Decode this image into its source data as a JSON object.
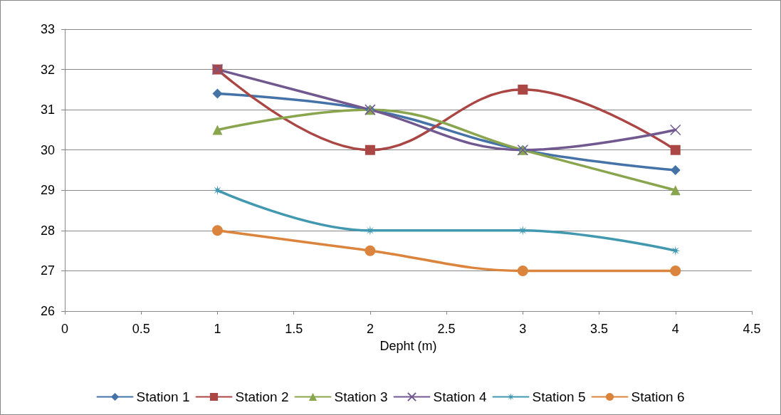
{
  "chart_data": {
    "type": "line",
    "xlabel": "Depht (m)",
    "x": [
      1,
      2,
      3,
      4
    ],
    "xlim": [
      0,
      4.5
    ],
    "xticks": [
      0,
      0.5,
      1,
      1.5,
      2,
      2.5,
      3,
      3.5,
      4,
      4.5
    ],
    "ylim": [
      26,
      33
    ],
    "yticks": [
      26,
      27,
      28,
      29,
      30,
      31,
      32,
      33
    ],
    "grid": "y",
    "legend": "bottom",
    "line_style": "solid",
    "series": [
      {
        "name": "Station 1",
        "color": "#4572a7",
        "marker": "diamond",
        "values": [
          31.4,
          31,
          30,
          29.5
        ]
      },
      {
        "name": "Station 2",
        "color": "#aa4643",
        "marker": "square",
        "values": [
          32,
          30,
          31.5,
          30
        ]
      },
      {
        "name": "Station 3",
        "color": "#89a54e",
        "marker": "triangle",
        "values": [
          30.5,
          31,
          30,
          29
        ]
      },
      {
        "name": "Station 4",
        "color": "#71588f",
        "marker": "cross",
        "values": [
          32,
          31,
          30,
          30.5
        ]
      },
      {
        "name": "Station 5",
        "color": "#4198af",
        "marker": "star",
        "values": [
          29,
          28,
          28,
          27.5
        ]
      },
      {
        "name": "Station 6",
        "color": "#db843d",
        "marker": "circle",
        "values": [
          28,
          27.5,
          27,
          27
        ]
      }
    ]
  }
}
